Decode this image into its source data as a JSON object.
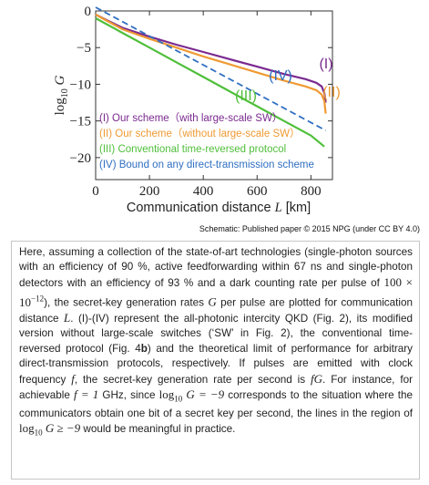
{
  "chart_data": {
    "type": "line",
    "xlabel": "Communication distance L [km]",
    "ylabel": "log10 G",
    "xlim": [
      0,
      880
    ],
    "ylim": [
      -23,
      0
    ],
    "x_ticks": [
      "0",
      "200",
      "400",
      "600",
      "800"
    ],
    "y_ticks": [
      "0",
      "-5",
      "-10",
      "-15",
      "-20"
    ],
    "grid": false,
    "legend_position": "bottom-left",
    "series": [
      {
        "name": "(I) Our scheme（with large-scale SW）",
        "label": "(I)",
        "color": "#7a2a8f",
        "style": "solid",
        "x": [
          0,
          50,
          100,
          200,
          300,
          400,
          500,
          600,
          700,
          780,
          820,
          840,
          850,
          855
        ],
        "y": [
          -0.5,
          -1.4,
          -2.3,
          -3.5,
          -4.6,
          -5.6,
          -6.6,
          -7.6,
          -8.6,
          -9.3,
          -9.8,
          -10.3,
          -11.2,
          -12.5
        ]
      },
      {
        "name": "(II) Our scheme（without large-scale SW）",
        "label": "(II)",
        "color": "#ef9a33",
        "style": "solid",
        "x": [
          0,
          50,
          100,
          200,
          300,
          400,
          500,
          600,
          700,
          780,
          820,
          840,
          850,
          855
        ],
        "y": [
          -0.5,
          -1.5,
          -2.5,
          -3.8,
          -5.0,
          -6.2,
          -7.3,
          -8.4,
          -9.5,
          -10.3,
          -10.8,
          -11.4,
          -12.3,
          -14.0
        ]
      },
      {
        "name": "(III) Conventional time-reversed protocol",
        "label": "(III)",
        "color": "#4fbf3a",
        "style": "solid",
        "x": [
          0,
          100,
          200,
          300,
          400,
          500,
          600,
          700,
          800,
          850
        ],
        "y": [
          -1.0,
          -3.0,
          -5.0,
          -7.0,
          -9.0,
          -11.0,
          -13.0,
          -15.0,
          -17.0,
          -18.5
        ]
      },
      {
        "name": "(IV) Bound on any direct-transmission scheme",
        "label": "(IV)",
        "color": "#2f6fc1",
        "style": "dashed",
        "x": [
          0,
          855
        ],
        "y": [
          0.5,
          -16.3
        ]
      }
    ]
  },
  "credit": "Schematic:  Published paper © 2015 NPG (under CC BY 4.0)",
  "caption": {
    "p1": "Here, assuming a collection of the state-of-art technologies (single-photon sources with an efficiency of 90 %, active feedforwarding within 67 ns and single-photon detectors with an efficiency of 93 % and a dark counting rate per pulse of ",
    "dark_rate": "100 × 10",
    "dark_rate_exp": "−12",
    "p2": "), the secret-key generation rates ",
    "var_G": "G",
    "p3": " per pulse are plotted for communication distance ",
    "var_L": "L",
    "p4": ". (I)-(IV) represent the all-photonic intercity QKD (Fig. 2), its modified version without large-scale switches (‘SW’ in Fig. 2), the conventional time-reversed protocol (Fig. 4",
    "fig_b": "b",
    "p5": ") and the theoretical limit of performance for arbitrary direct-transmission protocols, respectively. If pulses are emitted  with clock frequency ",
    "var_f": "f",
    "p6": ", the secret-key generation rate per second is ",
    "var_fG": "fG",
    "p7": ". For instance, for achievable ",
    "f_value": "f = 1",
    "p8": " GHz, since ",
    "cond1": "log",
    "cond1_sub": "10",
    "cond1_rest": " G = −9",
    "p9": " corresponds to the situation where the communicators obtain one bit of a secret key per second, the lines in the region of ",
    "cond2": "log",
    "cond2_sub": "10",
    "cond2_rest": " G ≥ −9",
    "p10": " would be meaningful in practice."
  }
}
